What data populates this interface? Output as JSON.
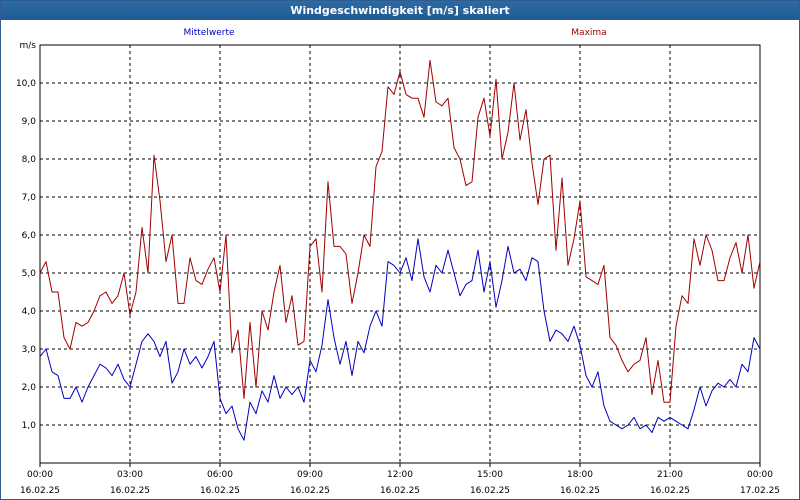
{
  "window": {
    "title": "Windgeschwindigkeit [m/s] skaliert"
  },
  "chart_data": {
    "type": "line",
    "ylabel": "m/s",
    "ylim": [
      0,
      11
    ],
    "yticks": [
      1,
      2,
      3,
      4,
      5,
      6,
      7,
      8,
      9,
      10
    ],
    "ytick_labels": [
      "1,0",
      "2,0",
      "3,0",
      "4,0",
      "5,0",
      "6,0",
      "7,0",
      "8,0",
      "9,0",
      "10,0"
    ],
    "xlim": [
      0,
      24
    ],
    "xticks": [
      {
        "time": "00:00",
        "date": "16.02.25"
      },
      {
        "time": "03:00",
        "date": "16.02.25"
      },
      {
        "time": "06:00",
        "date": "16.02.25"
      },
      {
        "time": "09:00",
        "date": "16.02.25"
      },
      {
        "time": "12:00",
        "date": "16.02.25"
      },
      {
        "time": "15:00",
        "date": "16.02.25"
      },
      {
        "time": "18:00",
        "date": "16.02.25"
      },
      {
        "time": "21:00",
        "date": "16.02.25"
      },
      {
        "time": "00:00",
        "date": "17.02.25"
      }
    ],
    "grid": true,
    "series": [
      {
        "name": "Mittelwerte",
        "color": "#0000c0",
        "x": [
          0.0,
          0.2,
          0.4,
          0.6,
          0.8,
          1.0,
          1.2,
          1.4,
          1.6,
          1.8,
          2.0,
          2.2,
          2.4,
          2.6,
          2.8,
          3.0,
          3.2,
          3.4,
          3.6,
          3.8,
          4.0,
          4.2,
          4.4,
          4.6,
          4.8,
          5.0,
          5.2,
          5.4,
          5.6,
          5.8,
          6.0,
          6.2,
          6.4,
          6.6,
          6.8,
          7.0,
          7.2,
          7.4,
          7.6,
          7.8,
          8.0,
          8.2,
          8.4,
          8.6,
          8.8,
          9.0,
          9.2,
          9.4,
          9.6,
          9.8,
          10.0,
          10.2,
          10.4,
          10.6,
          10.8,
          11.0,
          11.2,
          11.4,
          11.6,
          11.8,
          12.0,
          12.2,
          12.4,
          12.6,
          12.8,
          13.0,
          13.2,
          13.4,
          13.6,
          13.8,
          14.0,
          14.2,
          14.4,
          14.6,
          14.8,
          15.0,
          15.2,
          15.4,
          15.6,
          15.8,
          16.0,
          16.2,
          16.4,
          16.6,
          16.8,
          17.0,
          17.2,
          17.4,
          17.6,
          17.8,
          18.0,
          18.2,
          18.4,
          18.6,
          18.8,
          19.0,
          19.2,
          19.4,
          19.6,
          19.8,
          20.0,
          20.2,
          20.4,
          20.6,
          20.8,
          21.0,
          21.2,
          21.4,
          21.6,
          21.8,
          22.0,
          22.2,
          22.4,
          22.6,
          22.8,
          23.0,
          23.2,
          23.4,
          23.6,
          23.8,
          24.0
        ],
        "values": [
          2.8,
          3.0,
          2.4,
          2.3,
          1.7,
          1.7,
          2.0,
          1.6,
          2.0,
          2.3,
          2.6,
          2.5,
          2.3,
          2.6,
          2.2,
          2.0,
          2.6,
          3.2,
          3.4,
          3.2,
          2.8,
          3.2,
          2.1,
          2.4,
          3.0,
          2.6,
          2.8,
          2.5,
          2.8,
          3.2,
          1.7,
          1.3,
          1.5,
          0.9,
          0.6,
          1.6,
          1.3,
          1.9,
          1.6,
          2.3,
          1.7,
          2.0,
          1.8,
          2.0,
          1.6,
          2.7,
          2.4,
          3.1,
          4.3,
          3.3,
          2.6,
          3.2,
          2.3,
          3.2,
          2.9,
          3.6,
          4.0,
          3.6,
          5.3,
          5.2,
          5.0,
          5.4,
          4.8,
          5.9,
          4.9,
          4.5,
          5.2,
          5.0,
          5.6,
          5.0,
          4.4,
          4.7,
          4.8,
          5.6,
          4.5,
          5.3,
          4.1,
          4.8,
          5.7,
          5.0,
          5.1,
          4.8,
          5.4,
          5.3,
          4.0,
          3.2,
          3.5,
          3.4,
          3.2,
          3.6,
          3.1,
          2.3,
          2.0,
          2.4,
          1.5,
          1.1,
          1.0,
          0.9,
          1.0,
          1.2,
          0.9,
          1.0,
          0.8,
          1.2,
          1.1,
          1.2,
          1.1,
          1.0,
          0.9,
          1.4,
          2.0,
          1.5,
          1.9,
          2.1,
          2.0,
          2.2,
          2.0,
          2.6,
          2.4,
          3.3,
          3.2
        ],
        "x_tail": [
          24.0
        ],
        "values_tail": [
          3.0
        ]
      },
      {
        "name": "Maxima",
        "color": "#a00000",
        "x": [
          0.0,
          0.2,
          0.4,
          0.6,
          0.8,
          1.0,
          1.2,
          1.4,
          1.6,
          1.8,
          2.0,
          2.2,
          2.4,
          2.6,
          2.8,
          3.0,
          3.2,
          3.4,
          3.6,
          3.8,
          4.0,
          4.2,
          4.4,
          4.6,
          4.8,
          5.0,
          5.2,
          5.4,
          5.6,
          5.8,
          6.0,
          6.2,
          6.4,
          6.6,
          6.8,
          7.0,
          7.2,
          7.4,
          7.6,
          7.8,
          8.0,
          8.2,
          8.4,
          8.6,
          8.8,
          9.0,
          9.2,
          9.4,
          9.6,
          9.8,
          10.0,
          10.2,
          10.4,
          10.6,
          10.8,
          11.0,
          11.2,
          11.4,
          11.6,
          11.8,
          12.0,
          12.2,
          12.4,
          12.6,
          12.8,
          13.0,
          13.2,
          13.4,
          13.6,
          13.8,
          14.0,
          14.2,
          14.4,
          14.6,
          14.8,
          15.0,
          15.2,
          15.4,
          15.6,
          15.8,
          16.0,
          16.2,
          16.4,
          16.6,
          16.8,
          17.0,
          17.2,
          17.4,
          17.6,
          17.8,
          18.0,
          18.2,
          18.4,
          18.6,
          18.8,
          19.0,
          19.2,
          19.4,
          19.6,
          19.8,
          20.0,
          20.2,
          20.4,
          20.6,
          20.8,
          21.0,
          21.2,
          21.4,
          21.6,
          21.8,
          22.0,
          22.2,
          22.4,
          22.6,
          22.8,
          23.0,
          23.2,
          23.4,
          23.6,
          23.8,
          24.0
        ],
        "values": [
          5.0,
          5.3,
          4.5,
          4.5,
          3.3,
          3.0,
          3.7,
          3.6,
          3.7,
          4.0,
          4.4,
          4.5,
          4.2,
          4.4,
          5.0,
          3.9,
          4.5,
          6.2,
          5.0,
          8.1,
          6.9,
          5.3,
          6.0,
          4.2,
          4.2,
          5.4,
          4.8,
          4.7,
          5.1,
          5.4,
          4.5,
          6.0,
          2.9,
          3.5,
          1.7,
          3.7,
          2.0,
          4.0,
          3.5,
          4.5,
          5.2,
          3.7,
          4.4,
          3.1,
          3.2,
          5.7,
          5.9,
          4.5,
          7.4,
          5.7,
          5.7,
          5.5,
          4.2,
          5.0,
          6.0,
          5.7,
          7.8,
          8.2,
          9.9,
          9.7,
          10.3,
          9.7,
          9.6,
          9.6,
          9.1,
          10.6,
          9.5,
          9.4,
          9.6,
          8.3,
          8.0,
          7.3,
          7.4,
          9.1,
          9.6,
          8.6,
          10.1,
          8.0,
          8.7,
          10.0,
          8.5,
          9.3,
          7.9,
          6.8,
          8.0,
          8.1,
          5.6,
          7.5,
          5.2,
          5.9,
          6.9,
          4.9,
          4.8,
          4.7,
          5.2,
          3.3,
          3.1,
          2.7,
          2.4,
          2.6,
          2.7,
          3.3,
          1.8,
          2.7,
          1.6,
          1.6,
          2.5,
          2.5,
          2.1,
          2.2,
          2.6,
          2.1,
          2.2,
          3.1,
          3.6,
          2.6,
          4.9,
          3.5,
          3.1,
          3.6,
          4.3
        ],
        "x_tail": [
          21.2,
          21.4,
          21.6,
          21.8,
          22.0,
          22.2,
          22.4,
          22.6,
          22.8,
          23.0,
          23.2,
          23.4,
          23.6,
          23.8,
          24.0
        ],
        "values_tail": [
          3.6,
          4.4,
          4.2,
          5.9,
          5.2,
          6.0,
          5.6,
          4.8,
          4.8,
          5.4,
          5.8,
          5.0,
          6.0,
          4.6,
          5.3
        ]
      }
    ]
  }
}
